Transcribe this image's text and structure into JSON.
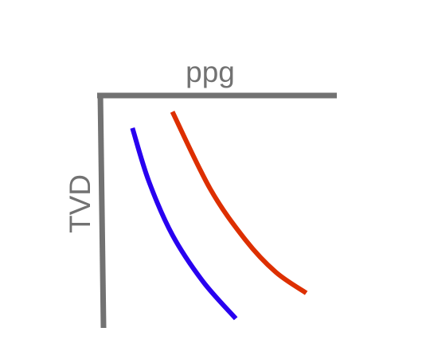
{
  "chart_data": {
    "type": "line",
    "title": "",
    "xlabel": "ppg",
    "ylabel": "TVD",
    "xaxis_position": "top",
    "yaxis_direction": "down",
    "grid": false,
    "legend": "none",
    "series": [
      {
        "color": "#2800f0",
        "points": [
          [
            0.13,
            0.14
          ],
          [
            0.2,
            0.37
          ],
          [
            0.3,
            0.6
          ],
          [
            0.43,
            0.8
          ],
          [
            0.57,
            0.96
          ]
        ]
      },
      {
        "color": "#dd2f00",
        "points": [
          [
            0.3,
            0.07
          ],
          [
            0.46,
            0.4
          ],
          [
            0.61,
            0.62
          ],
          [
            0.74,
            0.76
          ],
          [
            0.87,
            0.85
          ]
        ]
      }
    ]
  }
}
